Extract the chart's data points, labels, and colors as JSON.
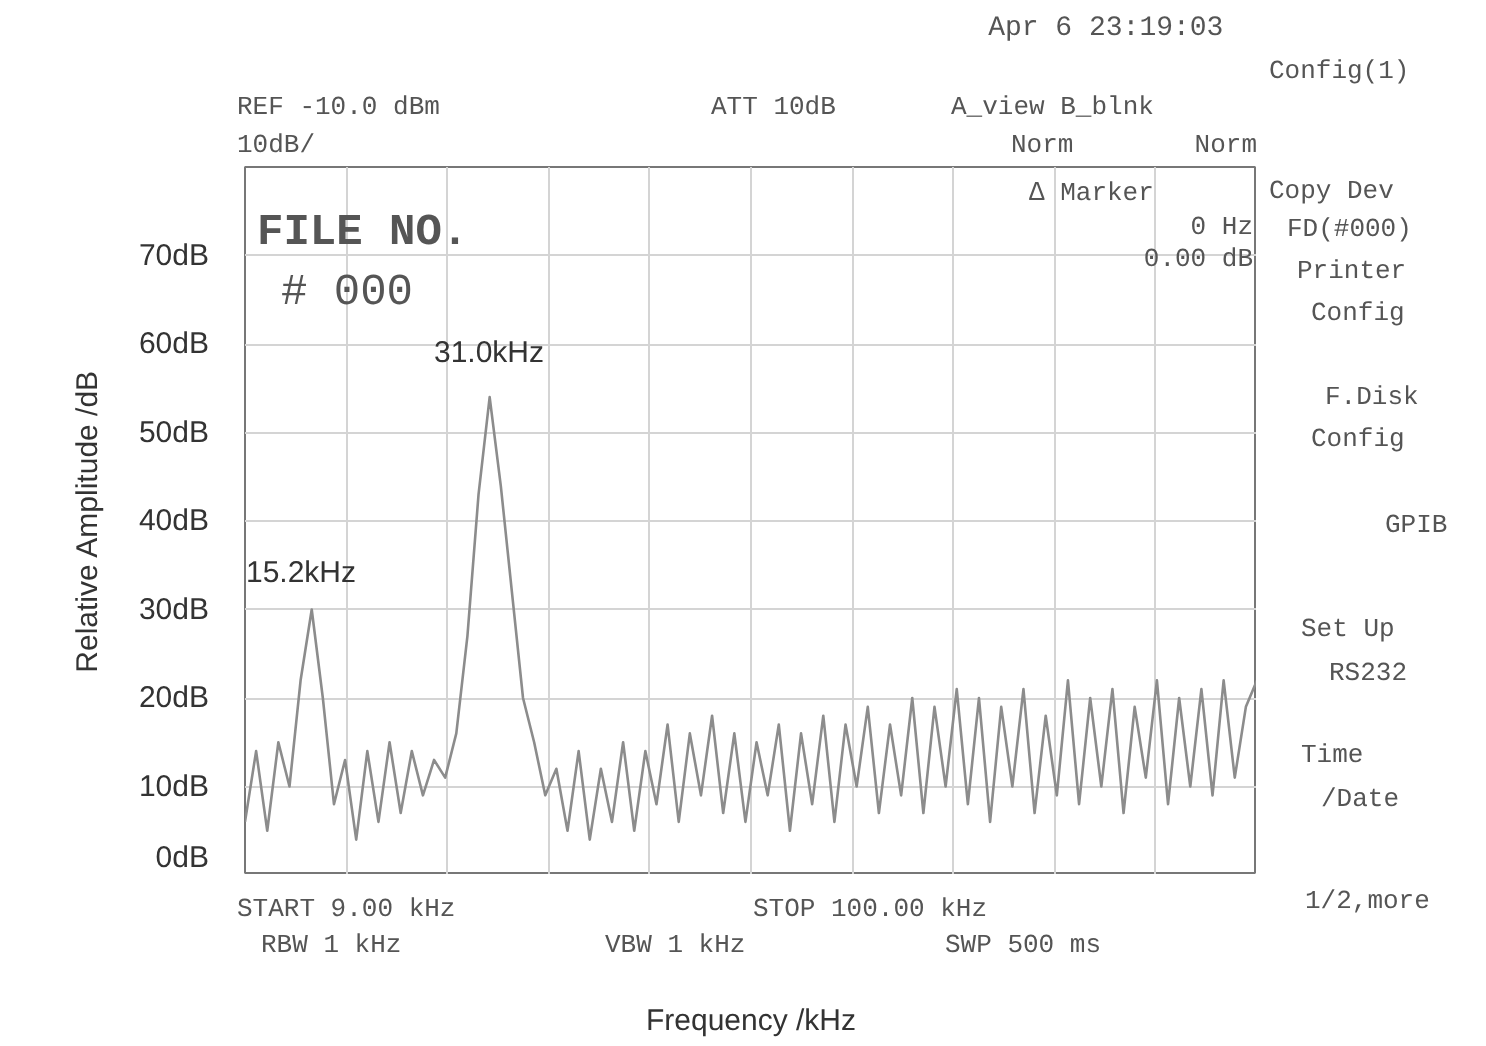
{
  "chart_data": {
    "type": "line",
    "xlabel": "Frequency /kHz",
    "ylabel": "Relative Amplitude /dB",
    "categories": [
      null,
      null,
      null,
      null,
      null,
      null,
      null,
      null,
      null,
      null,
      null,
      null,
      null,
      null,
      null,
      null,
      null,
      null,
      null,
      null,
      null,
      null,
      null,
      null,
      null,
      null,
      null,
      null,
      null,
      null,
      null,
      null,
      null,
      null,
      null,
      null,
      null,
      null,
      null,
      null,
      null,
      null,
      null,
      null,
      null,
      null,
      null,
      null,
      null,
      null,
      null,
      null,
      null,
      null,
      null,
      null,
      null,
      null,
      null,
      null,
      null,
      null,
      null,
      null,
      null,
      null,
      null,
      null,
      null,
      null,
      null,
      null,
      null,
      null,
      null,
      null,
      null,
      null,
      null,
      null,
      null,
      null,
      null,
      null,
      null,
      null,
      null,
      null,
      null,
      null,
      null,
      null
    ],
    "ylim": [
      0,
      80
    ],
    "yticks": [
      {
        "value": 0,
        "label": "0dB"
      },
      {
        "value": 10,
        "label": "10dB"
      },
      {
        "value": 20,
        "label": "20dB"
      },
      {
        "value": 30,
        "label": "30dB"
      },
      {
        "value": 40,
        "label": "40dB"
      },
      {
        "value": 50,
        "label": "50dB"
      },
      {
        "value": 60,
        "label": "60dB"
      },
      {
        "value": 70,
        "label": "70dB"
      },
      {
        "value": 80,
        "label": null
      }
    ],
    "tick_labels": "y",
    "grid": true,
    "line_style": "solid",
    "series": [
      {
        "color": "#8c8c8c",
        "values": [
          6,
          14,
          5,
          15,
          10,
          22,
          30,
          20,
          8,
          13,
          4,
          14,
          6,
          15,
          7,
          14,
          9,
          13,
          11,
          16,
          27,
          43,
          54,
          44,
          32,
          20,
          15,
          9,
          12,
          5,
          14,
          4,
          12,
          6,
          15,
          5,
          14,
          8,
          17,
          6,
          16,
          9,
          18,
          7,
          16,
          6,
          15,
          9,
          17,
          5,
          16,
          8,
          18,
          6,
          17,
          10,
          19,
          7,
          17,
          9,
          20,
          7,
          19,
          10,
          21,
          8,
          20,
          6,
          19,
          10,
          21,
          7,
          18,
          9,
          22,
          8,
          20,
          10,
          21,
          7,
          19,
          11,
          22,
          8,
          20,
          10,
          21,
          9,
          22,
          11,
          19,
          22
        ]
      }
    ],
    "annotations": [
      "15.2kHz",
      "31.0kHz",
      "Apr   6 23:19:03",
      "REF -10.0 dBm",
      "10dB/",
      "ATT 10dB",
      "A_view B_blnk",
      "Norm",
      "Norm",
      "∆ Marker",
      "0 Hz",
      "0.00 dB",
      "FILE NO.",
      "# 000",
      "START 9.00 kHz",
      "RBW 1 kHz",
      "VBW 1 kHz",
      "STOP 100.00 kHz",
      "SWP 500 ms",
      "Config(1)",
      "Copy Dev",
      "FD(#000)",
      "Printer",
      "Config",
      "F.Disk",
      "Config",
      "GPIB",
      "Set Up",
      "RS232",
      "Time",
      "/Date",
      "1/2,more"
    ]
  }
}
